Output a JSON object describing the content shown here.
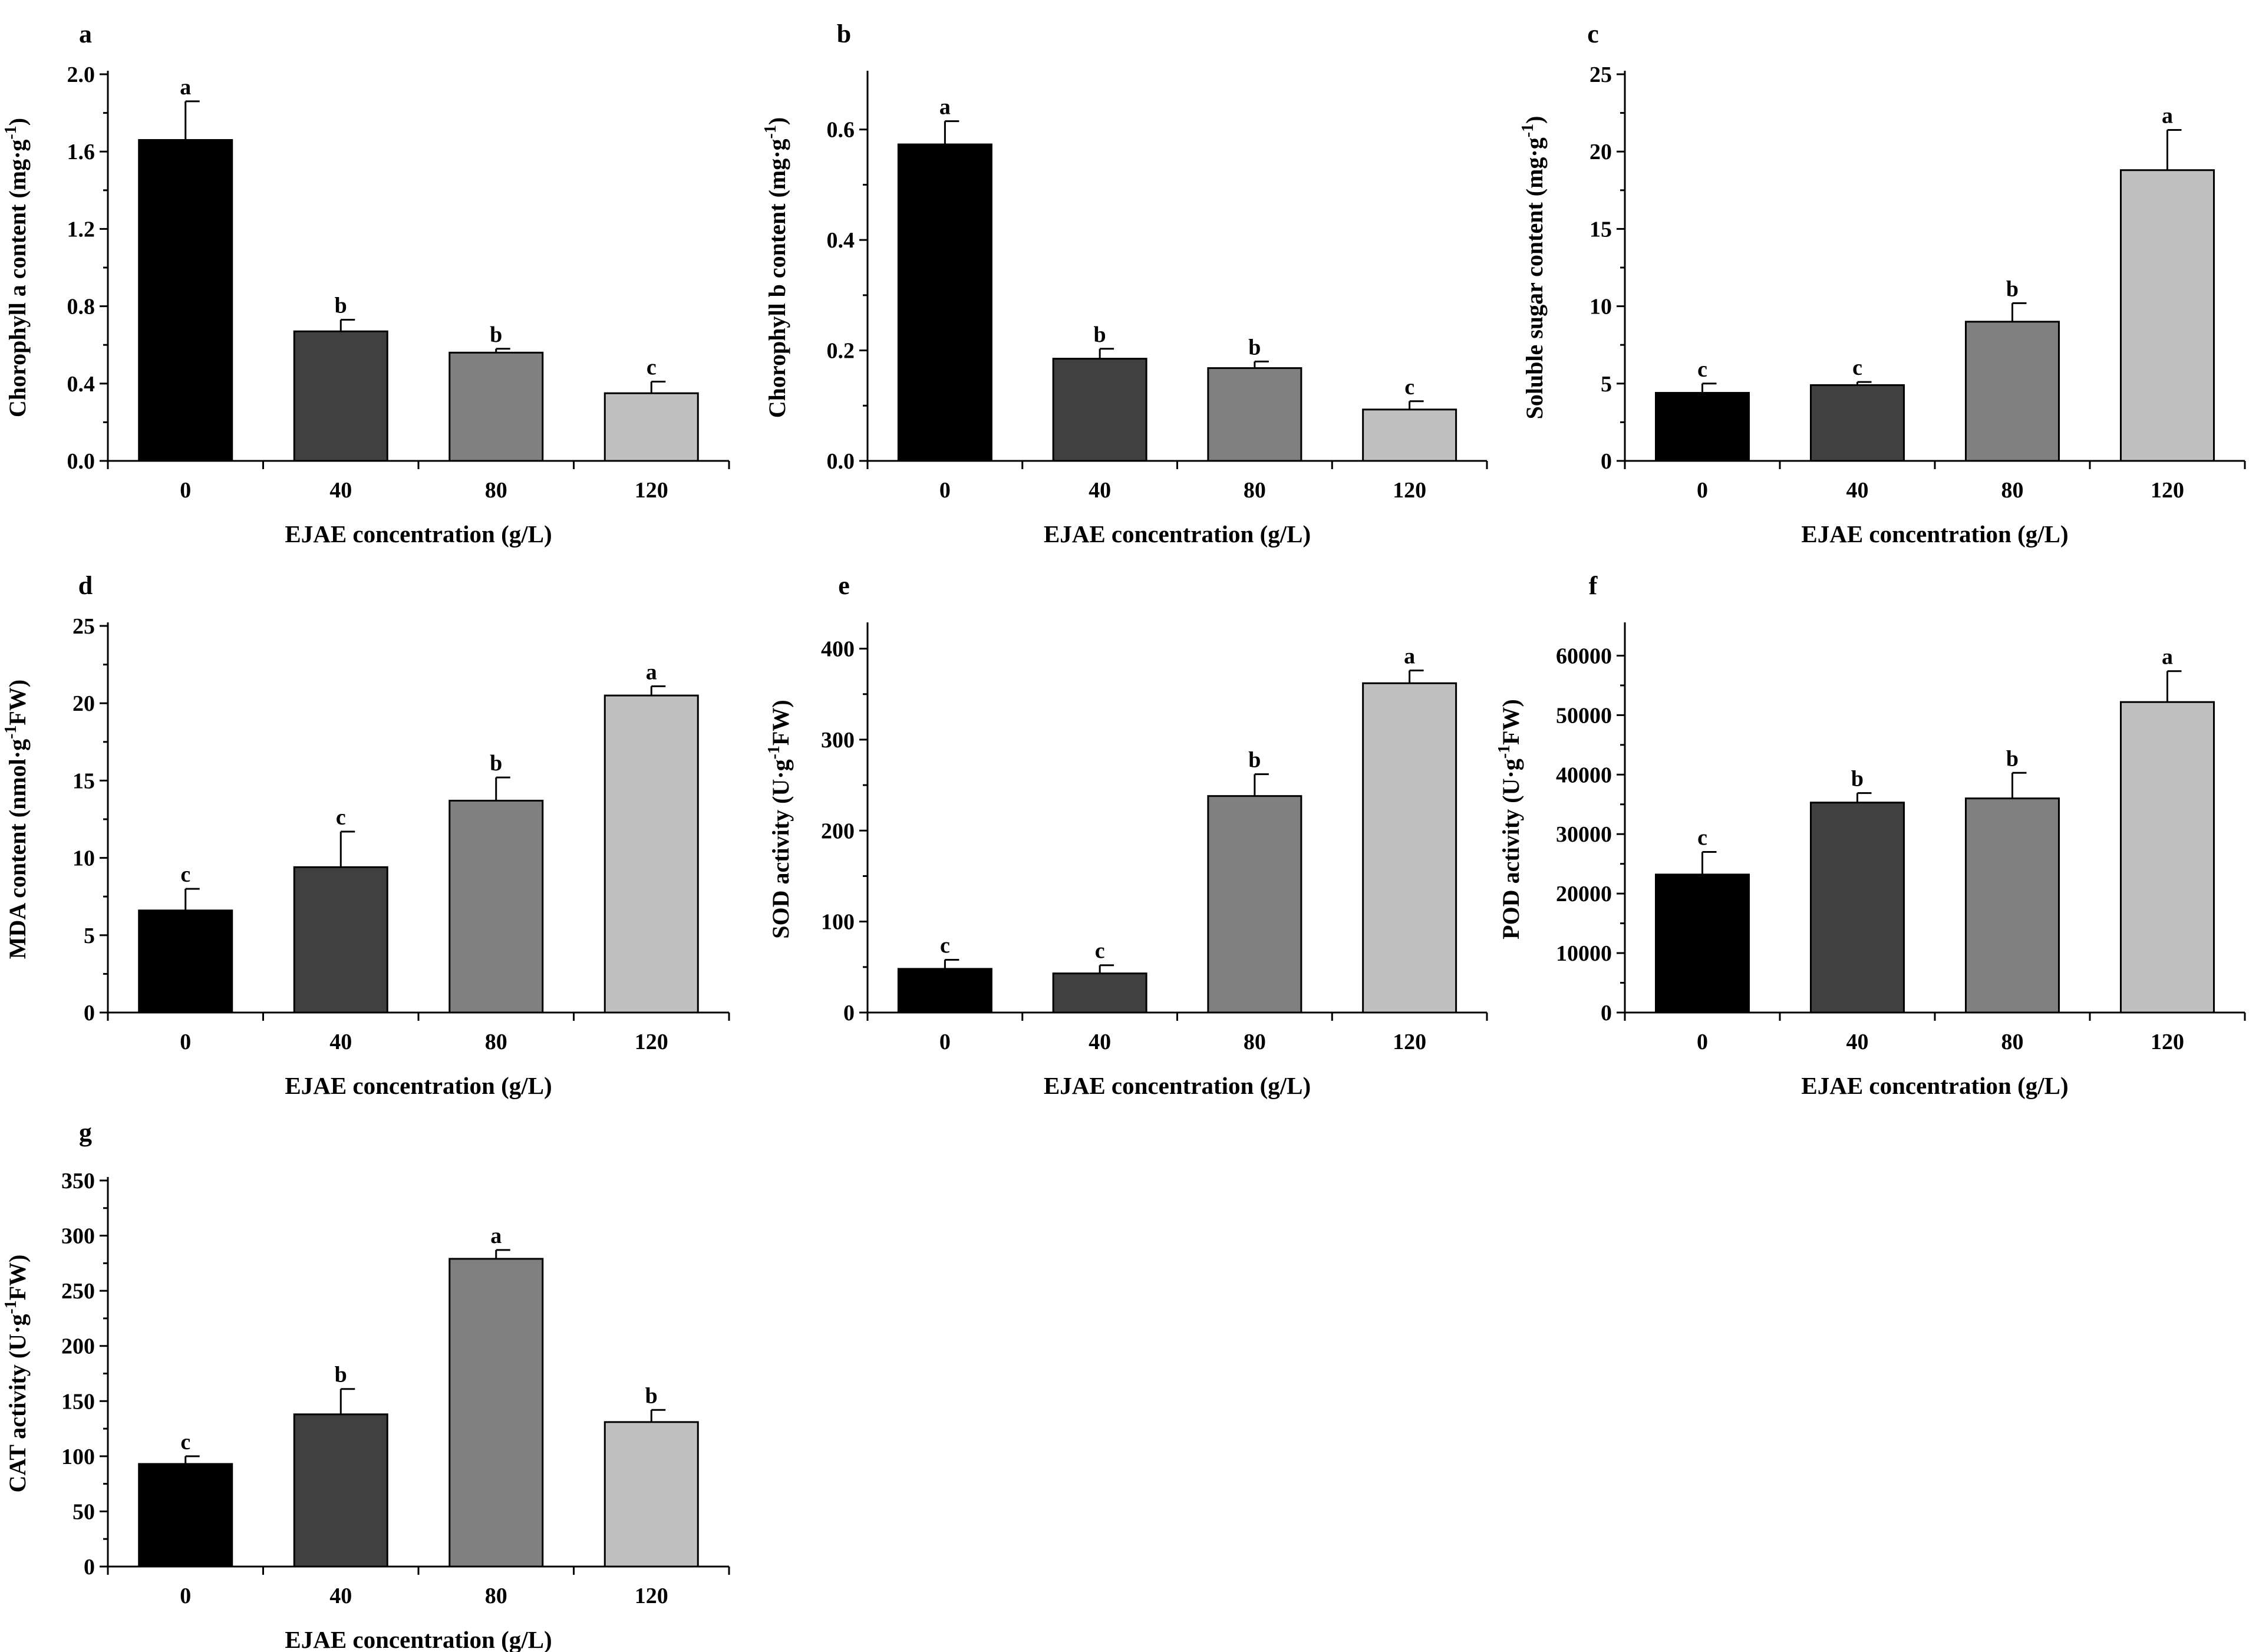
{
  "colors": {
    "bars": [
      "#000000",
      "#404040",
      "#808080",
      "#c0c0c0"
    ],
    "axis": "#000000",
    "background": "#ffffff"
  },
  "chart_data": [
    {
      "panel": "a",
      "type": "bar",
      "categories": [
        "0",
        "40",
        "80",
        "120"
      ],
      "values": [
        1.66,
        0.67,
        0.56,
        0.35
      ],
      "errors": [
        0.2,
        0.06,
        0.02,
        0.06
      ],
      "letters": [
        "a",
        "b",
        "b",
        "c"
      ],
      "xlabel": "EJAE concentration (g/L)",
      "ylabel": {
        "pre": "Chorophyll a content (mg·g",
        "sup": "-1",
        "post": ")"
      },
      "ylim": [
        0,
        2.0
      ],
      "yticks": [
        "0.0",
        "0.4",
        "0.8",
        "1.2",
        "1.6",
        "2.0"
      ]
    },
    {
      "panel": "b",
      "type": "bar",
      "categories": [
        "0",
        "40",
        "80",
        "120"
      ],
      "values": [
        0.573,
        0.185,
        0.168,
        0.093
      ],
      "errors": [
        0.042,
        0.018,
        0.012,
        0.015
      ],
      "letters": [
        "a",
        "b",
        "b",
        "c"
      ],
      "xlabel": "EJAE concentration (g/L)",
      "ylabel": {
        "pre": "Chorophyll b content (mg·g",
        "sup": "-1",
        "post": ")"
      },
      "ylim": [
        0,
        0.7
      ],
      "yticks": [
        "0.0",
        "0.2",
        "0.4",
        "0.6"
      ]
    },
    {
      "panel": "c",
      "type": "bar",
      "categories": [
        "0",
        "40",
        "80",
        "120"
      ],
      "values": [
        4.4,
        4.9,
        9.0,
        18.8
      ],
      "errors": [
        0.6,
        0.2,
        1.2,
        2.6
      ],
      "letters": [
        "c",
        "c",
        "b",
        "a"
      ],
      "xlabel": "EJAE concentration (g/L)",
      "ylabel": {
        "pre": "Soluble sugar content (mg·g",
        "sup": "-1",
        "post": ")"
      },
      "ylim": [
        0,
        25
      ],
      "yticks": [
        "0",
        "5",
        "10",
        "15",
        "20",
        "25"
      ]
    },
    {
      "panel": "d",
      "type": "bar",
      "categories": [
        "0",
        "40",
        "80",
        "120"
      ],
      "values": [
        6.6,
        9.4,
        13.7,
        20.5
      ],
      "errors": [
        1.4,
        2.3,
        1.5,
        0.6
      ],
      "letters": [
        "c",
        "c",
        "b",
        "a"
      ],
      "xlabel": "EJAE concentration (g/L)",
      "ylabel": {
        "pre": "MDA content (nmol·g",
        "sup": "-1",
        "post": "FW)"
      },
      "ylim": [
        0,
        25
      ],
      "yticks": [
        "0",
        "5",
        "10",
        "15",
        "20",
        "25"
      ]
    },
    {
      "panel": "e",
      "type": "bar",
      "categories": [
        "0",
        "40",
        "80",
        "120"
      ],
      "values": [
        48,
        43,
        238,
        362
      ],
      "errors": [
        10,
        9,
        24,
        14
      ],
      "letters": [
        "c",
        "c",
        "b",
        "a"
      ],
      "xlabel": "EJAE concentration (g/L)",
      "ylabel": {
        "pre": "SOD activity (U·g",
        "sup": "-1",
        "post": "FW)"
      },
      "ylim": [
        0,
        425
      ],
      "yticks": [
        "0",
        "100",
        "200",
        "300",
        "400"
      ]
    },
    {
      "panel": "f",
      "type": "bar",
      "categories": [
        "0",
        "40",
        "80",
        "120"
      ],
      "values": [
        23200,
        35300,
        36000,
        52200
      ],
      "errors": [
        3800,
        1600,
        4300,
        5200
      ],
      "letters": [
        "c",
        "b",
        "b",
        "a"
      ],
      "xlabel": "EJAE concentration (g/L)",
      "ylabel": {
        "pre": "POD activity (U·g",
        "sup": "-1",
        "post": "FW)"
      },
      "ylim": [
        0,
        65000
      ],
      "yticks": [
        "0",
        "10000",
        "20000",
        "30000",
        "40000",
        "50000",
        "60000"
      ]
    },
    {
      "panel": "g",
      "type": "bar",
      "categories": [
        "0",
        "40",
        "80",
        "120"
      ],
      "values": [
        93,
        138,
        279,
        131
      ],
      "errors": [
        7,
        23,
        8,
        11
      ],
      "letters": [
        "c",
        "b",
        "a",
        "b"
      ],
      "xlabel": "EJAE concentration (g/L)",
      "ylabel": {
        "pre": "CAT activity (U·g",
        "sup": "-1",
        "post": "FW)"
      },
      "ylim": [
        0,
        350
      ],
      "yticks": [
        "0",
        "50",
        "100",
        "150",
        "200",
        "250",
        "300",
        "350"
      ]
    }
  ]
}
